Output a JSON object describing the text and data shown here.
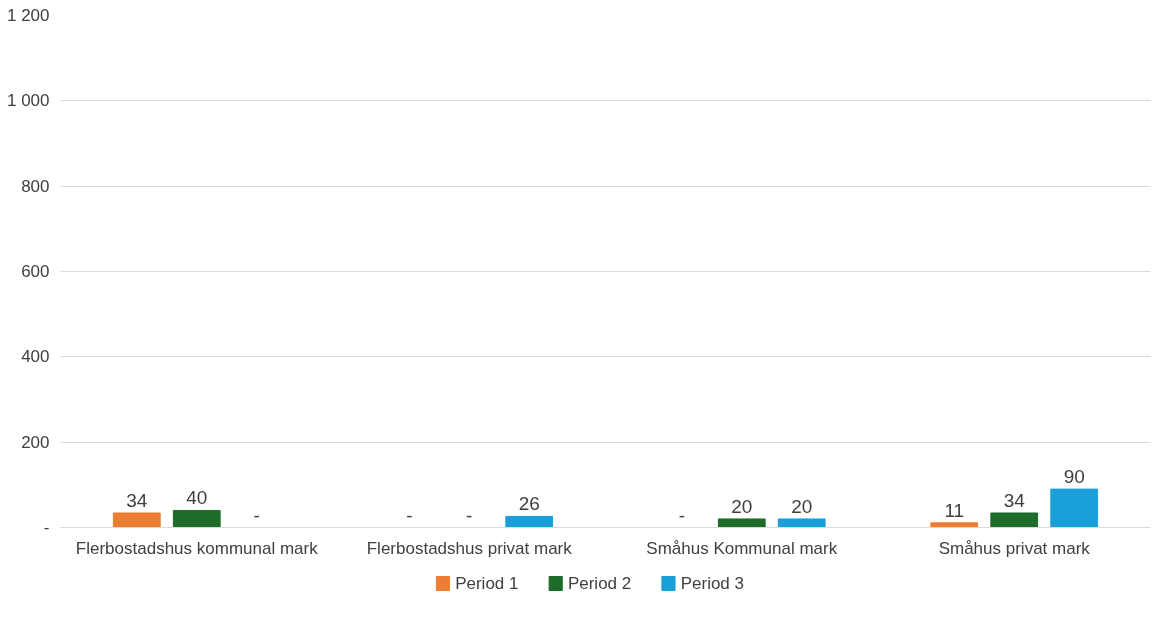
{
  "chart_data": {
    "type": "bar",
    "categories": [
      "Flerbostadshus kommunal mark",
      "Flerbostadshus privat mark",
      "Småhus Kommunal mark",
      "Småhus privat mark"
    ],
    "series": [
      {
        "name": "Period 1",
        "color": "#ed7d31",
        "values": [
          34,
          0,
          0,
          11
        ],
        "value_labels": [
          "34",
          "-",
          "-",
          "11"
        ]
      },
      {
        "name": "Period 2",
        "color": "#1e6b2a",
        "values": [
          40,
          0,
          20,
          34
        ],
        "value_labels": [
          "40",
          "-",
          "20",
          "34"
        ]
      },
      {
        "name": "Period 3",
        "color": "#1a9fd9",
        "values": [
          0,
          26,
          20,
          90
        ],
        "value_labels": [
          "-",
          "26",
          "20",
          "90"
        ]
      }
    ],
    "ylim": [
      0,
      1200
    ],
    "yticks": [
      {
        "value": 0,
        "label": "-"
      },
      200,
      400,
      600,
      800,
      {
        "value": 1000,
        "label": "1 000"
      },
      {
        "value": 1200,
        "label": "1 200"
      }
    ],
    "grid": "y",
    "legend": "bottom"
  }
}
